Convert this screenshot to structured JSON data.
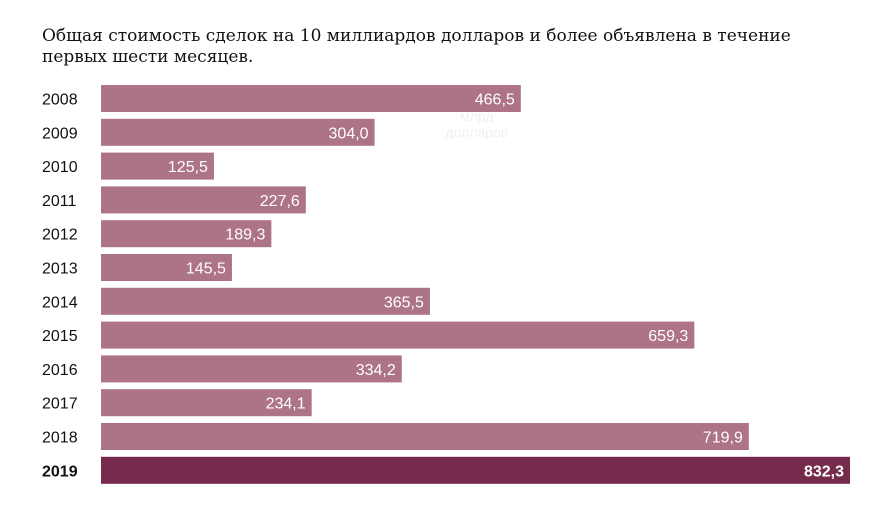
{
  "title": "Общая стоимость сделок на 10 миллиардов долларов и более объявлена в течение первых шести месяцев.",
  "chart_data": {
    "type": "bar",
    "orientation": "horizontal",
    "title": "Общая стоимость сделок на 10 миллиардов долларов и более объявлена в течение первых шести месяцев.",
    "unit_label": [
      "млрд",
      "долларов"
    ],
    "categories": [
      "2008",
      "2009",
      "2010",
      "2011",
      "2012",
      "2013",
      "2014",
      "2015",
      "2016",
      "2017",
      "2018",
      "2019"
    ],
    "values": [
      466.5,
      304.0,
      125.5,
      227.6,
      189.3,
      145.5,
      365.5,
      659.3,
      334.2,
      234.1,
      719.9,
      832.3
    ],
    "value_labels": [
      "466,5",
      "304,0",
      "125,5",
      "227,6",
      "189,3",
      "145,5",
      "365,5",
      "659,3",
      "334,2",
      "234,1",
      "719,9",
      "832,3"
    ],
    "highlight": "2019",
    "colors": {
      "bar": "#ad7389",
      "highlight": "#762a4c",
      "label": "#ffffff",
      "unit": "#eef1f4"
    },
    "xlim": [
      0,
      832.3
    ],
    "grid": false,
    "legend": "none"
  }
}
